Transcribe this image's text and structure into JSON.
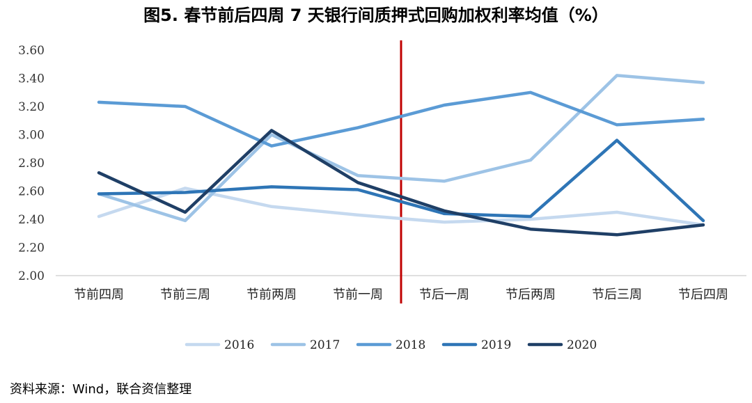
{
  "chart_data": {
    "type": "line",
    "title": "图5.    春节前后四周 7 天银行间质押式回购加权利率均值（%）",
    "categories": [
      "节前四周",
      "节前三周",
      "节前两周",
      "节前一周",
      "节后一周",
      "节后两周",
      "节后三周",
      "节后四周"
    ],
    "yticks": [
      "2.00",
      "2.20",
      "2.40",
      "2.60",
      "2.80",
      "3.00",
      "3.20",
      "3.40",
      "3.60"
    ],
    "ylim": [
      2.0,
      3.6
    ],
    "grid": false,
    "legend": "bottom",
    "divider_after_category": 3,
    "divider_color": "#c00000",
    "series": [
      {
        "name": "2016",
        "color": "#c5d9ef",
        "values": [
          2.42,
          2.62,
          2.49,
          2.43,
          2.38,
          2.4,
          2.45,
          2.36
        ]
      },
      {
        "name": "2017",
        "color": "#9dc3e6",
        "values": [
          2.58,
          2.39,
          3.0,
          2.71,
          2.67,
          2.82,
          3.42,
          3.37
        ]
      },
      {
        "name": "2018",
        "color": "#5b9bd5",
        "values": [
          3.23,
          3.2,
          2.92,
          3.05,
          3.21,
          3.3,
          3.07,
          3.11
        ]
      },
      {
        "name": "2019",
        "color": "#2e75b6",
        "values": [
          2.58,
          2.59,
          2.63,
          2.61,
          2.44,
          2.42,
          2.96,
          2.39
        ]
      },
      {
        "name": "2020",
        "color": "#1f3f66",
        "values": [
          2.73,
          2.45,
          3.03,
          2.66,
          2.46,
          2.33,
          2.29,
          2.36
        ]
      }
    ]
  },
  "source": "资料来源：Wind，联合资信整理"
}
